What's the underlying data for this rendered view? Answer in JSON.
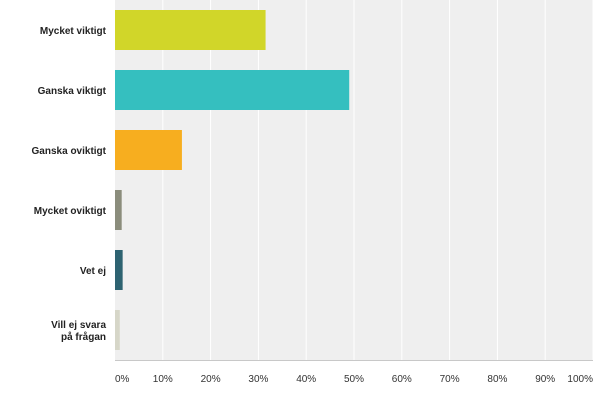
{
  "chart_data": {
    "type": "bar",
    "orientation": "horizontal",
    "categories": [
      [
        "Mycket viktigt"
      ],
      [
        "Ganska viktigt"
      ],
      [
        "Ganska oviktigt"
      ],
      [
        "Mycket oviktigt"
      ],
      [
        "Vet ej"
      ],
      [
        "Vill ej svara",
        "på frågan"
      ]
    ],
    "values": [
      31.5,
      49,
      14,
      1.4,
      1.6,
      1.0
    ],
    "colors": [
      "#d1d629",
      "#35bfbf",
      "#f7ae1f",
      "#8b8d7c",
      "#2e6371",
      "#d6d6c8"
    ],
    "xlim": [
      0,
      100
    ],
    "x_ticks": [
      "0%",
      "10%",
      "20%",
      "30%",
      "40%",
      "50%",
      "60%",
      "70%",
      "80%",
      "90%",
      "100%"
    ],
    "grid": "vertical",
    "plot_background": "#efefef",
    "grid_color": "#ffffff",
    "title": "",
    "xlabel": "",
    "ylabel": ""
  }
}
